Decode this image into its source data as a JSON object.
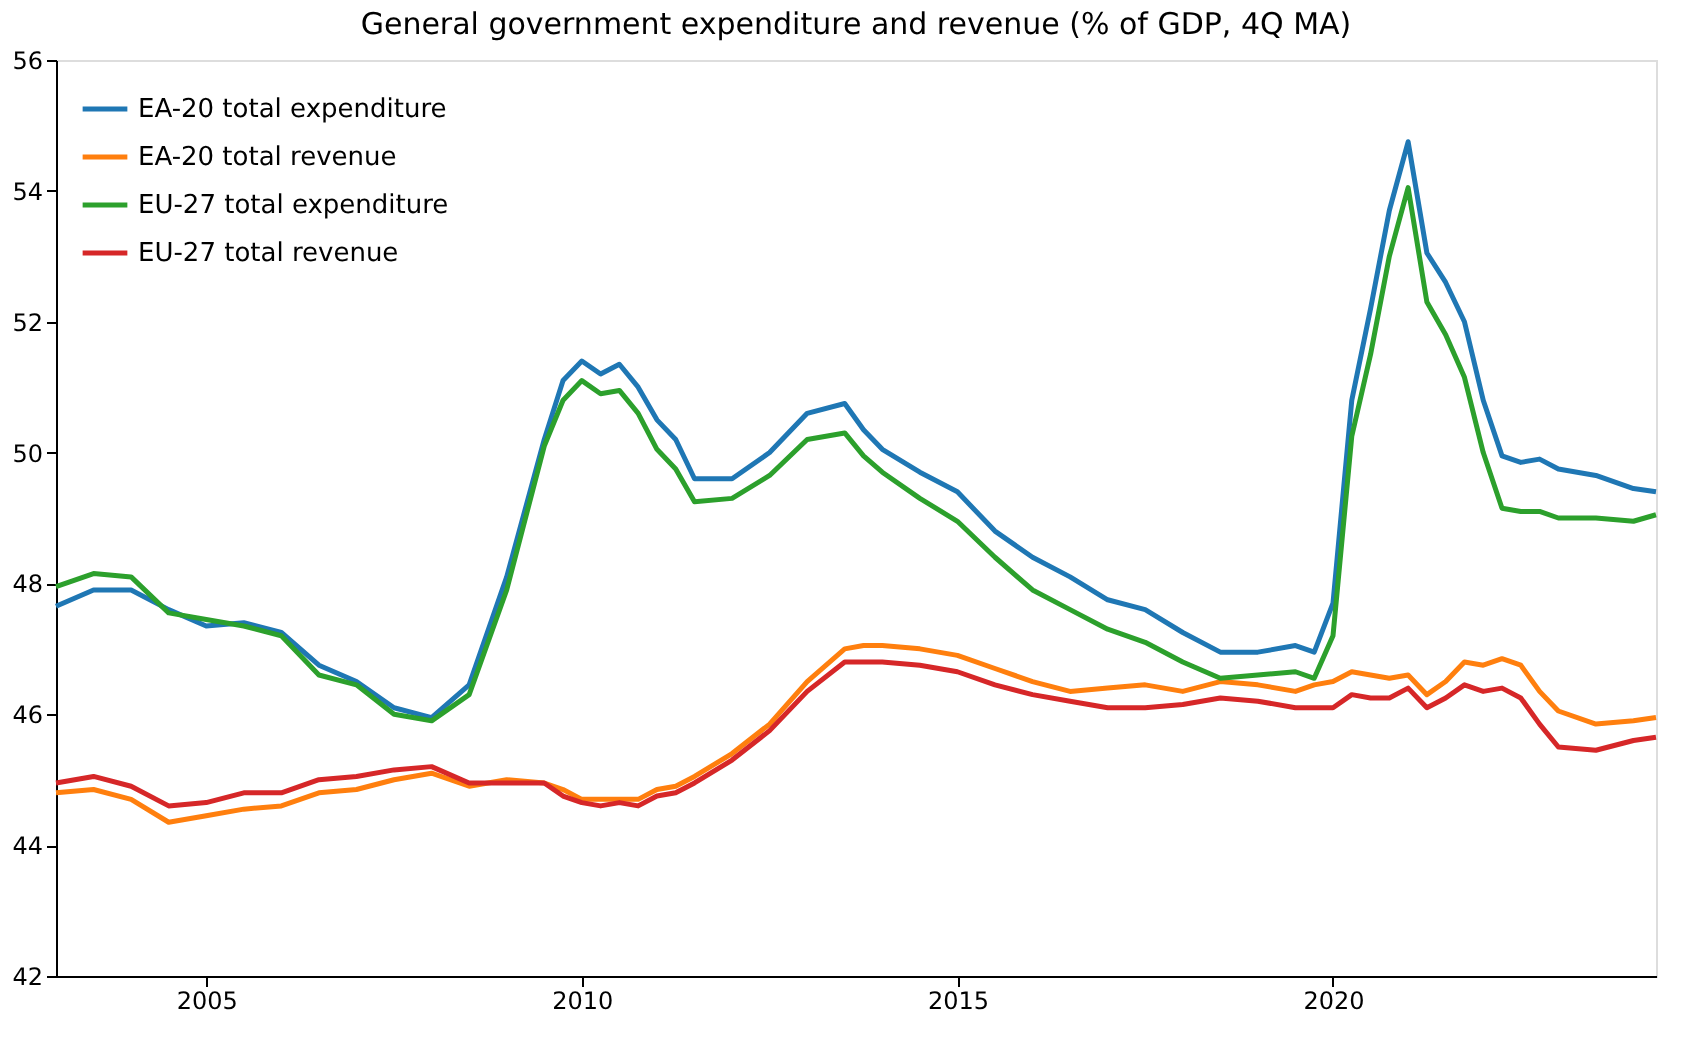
{
  "chart_data": {
    "type": "line",
    "title": "General government expenditure and revenue (% of GDP, 4Q MA)",
    "x": [
      2003.0,
      2003.5,
      2004.0,
      2004.5,
      2005.0,
      2005.5,
      2006.0,
      2006.5,
      2007.0,
      2007.5,
      2008.0,
      2008.5,
      2009.0,
      2009.5,
      2009.75,
      2010.0,
      2010.25,
      2010.5,
      2010.75,
      2011.0,
      2011.25,
      2011.5,
      2012.0,
      2012.5,
      2013.0,
      2013.5,
      2013.75,
      2014.0,
      2014.5,
      2015.0,
      2015.5,
      2016.0,
      2016.5,
      2017.0,
      2017.5,
      2018.0,
      2018.5,
      2019.0,
      2019.5,
      2019.75,
      2020.0,
      2020.25,
      2020.5,
      2020.75,
      2021.0,
      2021.25,
      2021.5,
      2021.75,
      2022.0,
      2022.25,
      2022.5,
      2022.75,
      2023.0,
      2023.5,
      2024.0,
      2024.3
    ],
    "series": [
      {
        "name": "EA-20 total expenditure",
        "color": "#1f77b4",
        "values": [
          47.65,
          47.9,
          47.9,
          47.6,
          47.35,
          47.4,
          47.25,
          46.75,
          46.5,
          46.1,
          45.95,
          46.45,
          48.1,
          50.2,
          51.1,
          51.4,
          51.2,
          51.35,
          51.0,
          50.5,
          50.2,
          49.6,
          49.6,
          50.0,
          50.6,
          50.75,
          50.35,
          50.05,
          49.7,
          49.4,
          48.8,
          48.4,
          48.1,
          47.75,
          47.6,
          47.25,
          46.95,
          46.95,
          47.05,
          46.95,
          47.7,
          50.8,
          52.2,
          53.7,
          54.75,
          53.05,
          52.6,
          52.0,
          50.8,
          49.95,
          49.85,
          49.9,
          49.75,
          49.65,
          49.45,
          49.4
        ]
      },
      {
        "name": "EA-20 total revenue",
        "color": "#ff7f0e",
        "values": [
          44.8,
          44.85,
          44.7,
          44.35,
          44.45,
          44.55,
          44.6,
          44.8,
          44.85,
          45.0,
          45.1,
          44.9,
          45.0,
          44.95,
          44.85,
          44.7,
          44.7,
          44.7,
          44.7,
          44.85,
          44.9,
          45.05,
          45.4,
          45.85,
          46.5,
          47.0,
          47.05,
          47.05,
          47.0,
          46.9,
          46.7,
          46.5,
          46.35,
          46.4,
          46.45,
          46.35,
          46.5,
          46.45,
          46.35,
          46.45,
          46.5,
          46.65,
          46.6,
          46.55,
          46.6,
          46.3,
          46.5,
          46.8,
          46.75,
          46.85,
          46.75,
          46.35,
          46.05,
          45.85,
          45.9,
          45.95
        ]
      },
      {
        "name": "EU-27 total expenditure",
        "color": "#2ca02c",
        "values": [
          47.95,
          48.15,
          48.1,
          47.55,
          47.45,
          47.35,
          47.2,
          46.6,
          46.45,
          46.0,
          45.9,
          46.3,
          47.9,
          50.1,
          50.8,
          51.1,
          50.9,
          50.95,
          50.6,
          50.05,
          49.75,
          49.25,
          49.3,
          49.65,
          50.2,
          50.3,
          49.95,
          49.7,
          49.3,
          48.95,
          48.4,
          47.9,
          47.6,
          47.3,
          47.1,
          46.8,
          46.55,
          46.6,
          46.65,
          46.55,
          47.2,
          50.25,
          51.5,
          53.0,
          54.05,
          52.3,
          51.8,
          51.15,
          50.0,
          49.15,
          49.1,
          49.1,
          49.0,
          49.0,
          48.95,
          49.05
        ]
      },
      {
        "name": "EU-27 total revenue",
        "color": "#d62728",
        "values": [
          44.95,
          45.05,
          44.9,
          44.6,
          44.65,
          44.8,
          44.8,
          45.0,
          45.05,
          45.15,
          45.2,
          44.95,
          44.95,
          44.95,
          44.75,
          44.65,
          44.6,
          44.65,
          44.6,
          44.75,
          44.8,
          44.95,
          45.3,
          45.75,
          46.35,
          46.8,
          46.8,
          46.8,
          46.75,
          46.65,
          46.45,
          46.3,
          46.2,
          46.1,
          46.1,
          46.15,
          46.25,
          46.2,
          46.1,
          46.1,
          46.1,
          46.3,
          46.25,
          46.25,
          46.4,
          46.1,
          46.25,
          46.45,
          46.35,
          46.4,
          46.25,
          45.85,
          45.5,
          45.45,
          45.6,
          45.65
        ]
      }
    ],
    "xlim": [
      2003,
      2024.3
    ],
    "xticks": [
      2005,
      2010,
      2015,
      2020
    ],
    "ylim": [
      42,
      56
    ],
    "yticks": [
      42,
      44,
      46,
      48,
      50,
      52,
      54,
      56
    ],
    "grid": false,
    "legend": "top left",
    "marker": "none",
    "line_style": "solid"
  }
}
